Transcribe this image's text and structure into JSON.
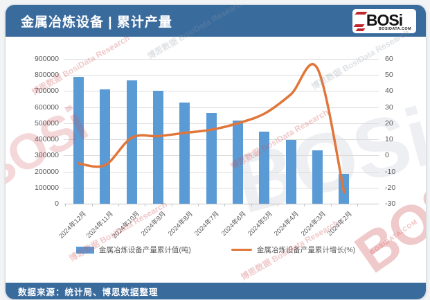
{
  "header": {
    "title": "金属冶炼设备 | 累计产量",
    "logo": {
      "text": "BOSi",
      "subtext": "BOSIDATA.COM"
    }
  },
  "footer": {
    "source": "数据来源：统计局、博思数据整理"
  },
  "watermark": {
    "big": "BOSi",
    "small": "博思数据 BosiData Research",
    "domain": "BOSIDATA.COM"
  },
  "colors": {
    "header_blue": "#3a6b9d",
    "bar_blue": "#5b9bd5",
    "line_orange": "#e0763a",
    "grid_gray": "#dcdcdc",
    "label_gray": "#595959",
    "logo_red": "#c0272d"
  },
  "chart_data": {
    "type": "bar",
    "title": "金属冶炼设备 | 累计产量",
    "categories": [
      "2024年12月",
      "2024年11月",
      "2024年10月",
      "2024年9月",
      "2024年8月",
      "2024年7月",
      "2024年6月",
      "2024年5月",
      "2024年4月",
      "2024年3月",
      "2024年2月"
    ],
    "series": [
      {
        "name": "金属冶炼设备产量累计值(吨)",
        "type": "bar",
        "axis": "left",
        "color": "#5b9bd5",
        "values": [
          790000,
          710000,
          768000,
          700000,
          630000,
          565000,
          515000,
          446000,
          395000,
          331000,
          184000
        ]
      },
      {
        "name": "金属冶炼设备产量累计增长(%)",
        "type": "line",
        "axis": "right",
        "color": "#e0763a",
        "values": [
          -5,
          -6,
          11,
          12,
          14,
          16,
          20,
          26,
          38,
          54,
          -23
        ]
      }
    ],
    "left_axis": {
      "min": 0,
      "max": 900000,
      "step": 100000,
      "label": ""
    },
    "right_axis": {
      "min": -30,
      "max": 60,
      "step": 10,
      "label": ""
    },
    "grid": true,
    "legend_position": "bottom"
  }
}
